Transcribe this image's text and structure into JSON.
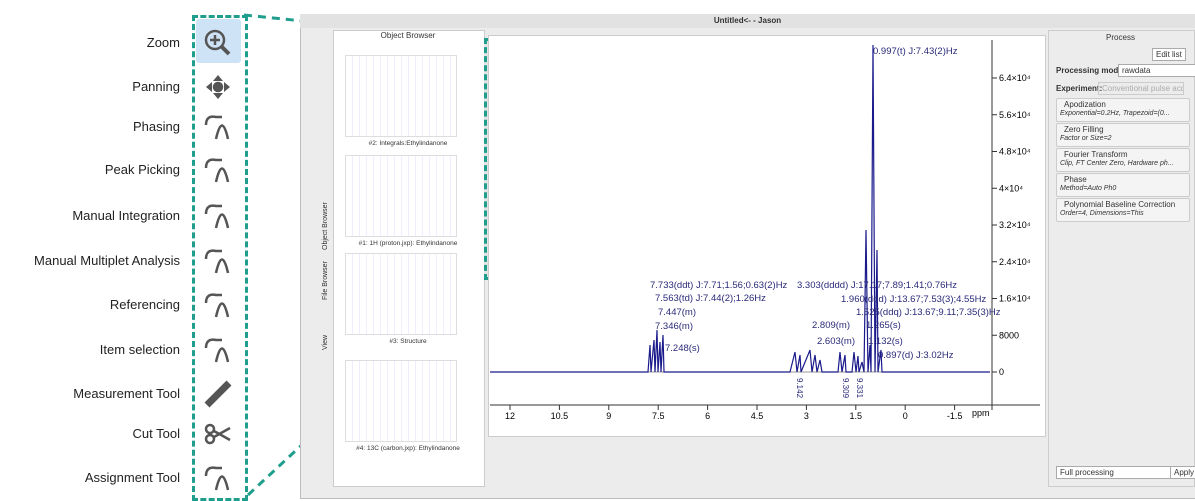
{
  "tools": [
    "Zoom",
    "Panning",
    "Phasing",
    "Peak Picking",
    "Manual Integration",
    "Manual Multiplet Analysis",
    "Referencing",
    "Item selection",
    "Measurement Tool",
    "Cut Tool",
    "Assignment Tool"
  ],
  "window": {
    "title": "Untitled<- - Jason"
  },
  "object_browser": {
    "title": "Object Browser",
    "items": [
      "#2: Integrals:Ethylindanone",
      "#1: 1H (proton.jxp): Ethylindanone",
      "#3: Structure",
      "#4: 13C (carbon.jxp): Ethylindanone"
    ],
    "tabs": [
      "Object Browser",
      "File Browser",
      "View"
    ]
  },
  "spectrum": {
    "x_labels": [
      "12",
      "10.5",
      "9",
      "7.5",
      "6",
      "4.5",
      "3",
      "1.5",
      "0",
      "-1.5"
    ],
    "x_unit": "ppm",
    "y_labels": [
      "6.4×10⁴",
      "5.6×10⁴",
      "4.8×10⁴",
      "4×10⁴",
      "3.2×10⁴",
      "2.4×10⁴",
      "1.6×10⁴",
      "8000",
      "0"
    ],
    "peaks": [
      "0.997(t) J:7.43(2)Hz",
      "7.733(ddt) J:7.71;1.56;0.63(2)Hz",
      "7.563(td) J:7.44(2);1.26Hz",
      "7.447(m)",
      "7.346(m)",
      "7.248(s)",
      "3.303(dddd) J:17.17;7.89;1.41;0.76Hz",
      "1.960(ddd) J:13.67;7.53(3);4.55Hz",
      "1.525(ddq) J:13.67;9.11;7.35(3)Hz",
      "2.809(m)",
      "2.603(m)",
      "1.265(s)",
      "1.132(s)",
      "0.897(d) J:3.02Hz"
    ],
    "integrals": [
      "9.142",
      "9.309",
      "9.331"
    ]
  },
  "process": {
    "title": "Process",
    "edit": "Edit list",
    "mode_label": "Processing mode:",
    "mode": "rawdata",
    "exp_label": "Experiment:",
    "exp": "Conventional pulse acq",
    "steps": [
      {
        "name": "Apodization",
        "detail": "Exponential=0.2Hz, Trapezoid=(0..."
      },
      {
        "name": "Zero Filling",
        "detail": "Factor or Size=2"
      },
      {
        "name": "Fourier Transform",
        "detail": "Clip, FT Center Zero, Hardware ph..."
      },
      {
        "name": "Phase",
        "detail": "Method=Auto Ph0"
      },
      {
        "name": "Polynomial Baseline Correction",
        "detail": "Order=4, Dimensions=This"
      }
    ],
    "footer": "Full processing",
    "apply": "Apply"
  }
}
